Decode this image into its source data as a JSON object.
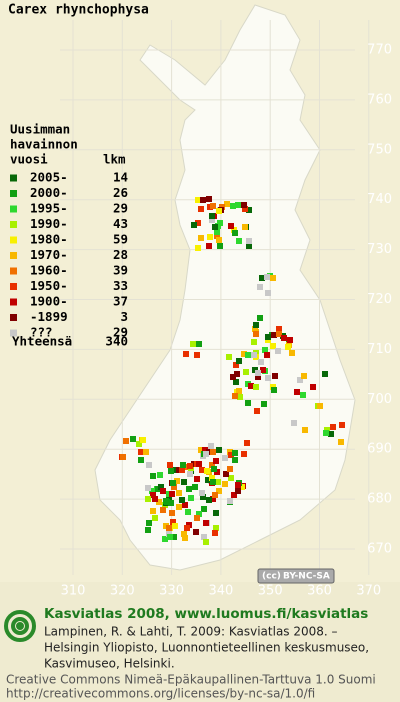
{
  "title": "Carex rhynchophysa",
  "legend": {
    "header": [
      "Uusimman",
      "havainnon",
      "vuosi"
    ],
    "count_header": "lkm",
    "rows": [
      {
        "label": "2005-",
        "count": 14,
        "color": "#086808"
      },
      {
        "label": "2000-",
        "count": 26,
        "color": "#12a012"
      },
      {
        "label": "1995-",
        "count": 29,
        "color": "#2ed82e"
      },
      {
        "label": "1990-",
        "count": 43,
        "color": "#a8f000"
      },
      {
        "label": "1980-",
        "count": 59,
        "color": "#f8f000"
      },
      {
        "label": "1970-",
        "count": 28,
        "color": "#f8b800"
      },
      {
        "label": "1960-",
        "count": 39,
        "color": "#f07000"
      },
      {
        "label": "1950-",
        "count": 33,
        "color": "#e83000"
      },
      {
        "label": "1900-",
        "count": 37,
        "color": "#c00000"
      },
      {
        "label": "-1899",
        "count": 3,
        "color": "#800000"
      },
      {
        "label": "???",
        "count": 29,
        "color": "#c8c8c8"
      }
    ],
    "total_label": "Yhteensä",
    "total": 340
  },
  "y_axis_labels": [
    770,
    760,
    750,
    740,
    730,
    720,
    710,
    700,
    690,
    680,
    670
  ],
  "x_axis_labels": [
    310,
    320,
    330,
    340,
    350,
    360,
    370
  ],
  "license_badge": "BY-NC-SA",
  "footer": {
    "title": "Kasviatlas 2008, www.luomus.fi/kasviatlas",
    "citation": [
      "Lampinen, R. & Lahti, T. 2009: Kasviatlas 2008. –",
      "Helsingin Yliopisto, Luonnontieteellinen keskusmuseo,",
      "Kasvimuseo, Helsinki."
    ],
    "license": [
      "Creative Commons Nimeä-Epäkaupallinen-Tarttuva 1.0 Suomi",
      "http://creativecommons.org/licenses/by-nc-sa/1.0/fi"
    ]
  }
}
